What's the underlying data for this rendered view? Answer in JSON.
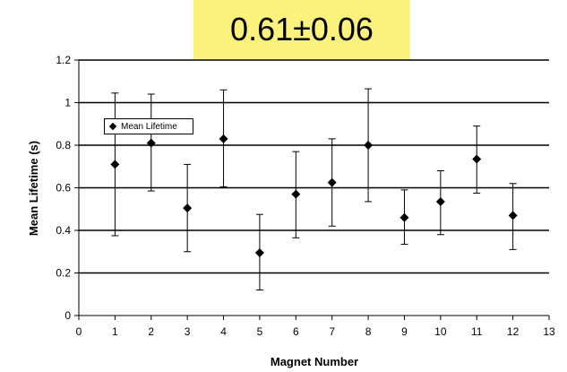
{
  "chart_data": {
    "type": "scatter",
    "title": "0.61±0.06",
    "xlabel": "Magnet Number",
    "ylabel": "Mean Lifetime  (s)",
    "xlim": [
      0,
      13
    ],
    "ylim": [
      0,
      1.2
    ],
    "xticks": [
      "0",
      "1",
      "2",
      "3",
      "4",
      "5",
      "6",
      "7",
      "8",
      "9",
      "10",
      "11",
      "12",
      "13"
    ],
    "yticks": [
      "0",
      "0.2",
      "0.4",
      "0.6",
      "0.8",
      "1",
      "1.2"
    ],
    "grid": "horizontal",
    "legend_position": "top-left",
    "series": [
      {
        "name": "Mean Lifetime",
        "x": [
          1,
          2,
          3,
          4,
          5,
          6,
          7,
          8,
          9,
          10,
          11,
          12
        ],
        "y": [
          0.71,
          0.81,
          0.505,
          0.83,
          0.295,
          0.57,
          0.625,
          0.8,
          0.46,
          0.535,
          0.735,
          0.47
        ],
        "error_low": [
          0.375,
          0.585,
          0.3,
          0.605,
          0.12,
          0.365,
          0.42,
          0.535,
          0.335,
          0.38,
          0.575,
          0.31
        ],
        "error_high": [
          1.045,
          1.04,
          0.71,
          1.06,
          0.475,
          0.77,
          0.83,
          1.065,
          0.59,
          0.68,
          0.89,
          0.62
        ]
      }
    ],
    "colors": {
      "title_background": "#fbf27e",
      "marker": "#000000"
    }
  }
}
